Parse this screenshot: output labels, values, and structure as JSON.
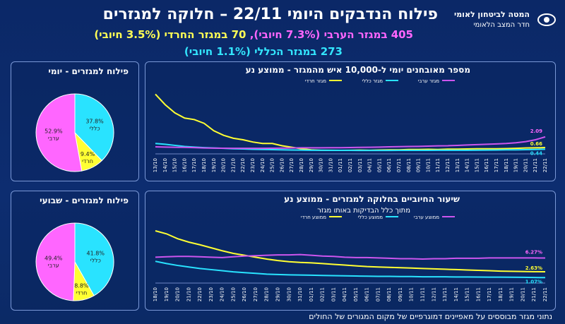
{
  "header": {
    "title": "פילוח הנדבקים היומי 22/11 – חלוקה למגזרים",
    "line1_arab": "405 במגזר הערבי (7.3% חיובי),",
    "line1_haredi": "70 במגזר החרדי (3.5% חיובי)",
    "line2": "273 במגזר הכללי (1.1% חיובי)",
    "logo_line1": "המטה לביטחון לאומי",
    "logo_line2": "חדר המצב הלאומי"
  },
  "colors": {
    "general": "#29e3ff",
    "haredi": "#ffff33",
    "arab": "#ff66ff",
    "arab_line": "#cc55ee"
  },
  "footer": "נתוני מגזר מבוססים על מאפיינים דמוגרפיים של מקום המגורים של החולים",
  "chart_data": [
    {
      "type": "pie",
      "title": "פילוח למגזרים - יומי",
      "slices": [
        {
          "name": "כללי",
          "value": 37.8,
          "label": "37.8%"
        },
        {
          "name": "חרדי",
          "value": 9.4,
          "label": "9.4%"
        },
        {
          "name": "ערבי",
          "value": 52.9,
          "label": "52.9%"
        }
      ]
    },
    {
      "type": "line",
      "title": "מספר מאובחנים יומי ל-10,000 איש מהמגזר - ממוצע נע",
      "x": [
        "13/10",
        "14/10",
        "15/10",
        "16/10",
        "17/10",
        "18/10",
        "19/10",
        "20/10",
        "21/10",
        "22/10",
        "23/10",
        "24/10",
        "25/10",
        "26/10",
        "27/10",
        "28/10",
        "29/10",
        "30/10",
        "31/10",
        "01/11",
        "02/11",
        "03/11",
        "04/11",
        "05/11",
        "06/11",
        "07/11",
        "08/11",
        "09/11",
        "10/11",
        "11/11",
        "12/11",
        "13/11",
        "14/11",
        "15/11",
        "16/11",
        "17/11",
        "18/11",
        "19/11",
        "20/11",
        "21/11",
        "22/11"
      ],
      "series": [
        {
          "name": "מגזר חרדי",
          "color": "#ffff33",
          "values": [
            7.8,
            6.4,
            5.3,
            4.6,
            4.4,
            3.9,
            2.9,
            2.3,
            1.9,
            1.7,
            1.4,
            1.2,
            1.2,
            0.9,
            0.7,
            0.5,
            0.35,
            0.3,
            0.3,
            0.28,
            0.3,
            0.32,
            0.3,
            0.33,
            0.35,
            0.35,
            0.4,
            0.4,
            0.42,
            0.4,
            0.45,
            0.45,
            0.47,
            0.5,
            0.5,
            0.5,
            0.52,
            0.55,
            0.6,
            0.62,
            0.66
          ]
        },
        {
          "name": "מגזר כללי",
          "color": "#29e3ff",
          "values": [
            1.2,
            1.1,
            0.95,
            0.8,
            0.72,
            0.65,
            0.6,
            0.55,
            0.5,
            0.47,
            0.42,
            0.4,
            0.38,
            0.35,
            0.33,
            0.32,
            0.3,
            0.3,
            0.28,
            0.28,
            0.28,
            0.27,
            0.27,
            0.27,
            0.27,
            0.28,
            0.28,
            0.28,
            0.28,
            0.29,
            0.29,
            0.3,
            0.3,
            0.31,
            0.32,
            0.33,
            0.35,
            0.36,
            0.38,
            0.4,
            0.44
          ]
        },
        {
          "name": "מגזר ערבי",
          "color": "#cc55ee",
          "values": [
            0.75,
            0.72,
            0.7,
            0.68,
            0.65,
            0.6,
            0.58,
            0.57,
            0.55,
            0.55,
            0.55,
            0.56,
            0.57,
            0.58,
            0.6,
            0.62,
            0.63,
            0.63,
            0.64,
            0.64,
            0.66,
            0.68,
            0.7,
            0.72,
            0.75,
            0.78,
            0.8,
            0.82,
            0.85,
            0.88,
            0.9,
            0.95,
            1.0,
            1.05,
            1.1,
            1.15,
            1.2,
            1.3,
            1.45,
            1.7,
            2.09
          ]
        }
      ],
      "end_labels": [
        "2.09",
        "0.66",
        "0.44"
      ],
      "ylim": [
        0,
        8.5
      ]
    },
    {
      "type": "pie",
      "title": "פילוח למגזרים - שבועי",
      "slices": [
        {
          "name": "כללי",
          "value": 41.8,
          "label": "41.8%"
        },
        {
          "name": "חרדי",
          "value": 8.8,
          "label": "8.8%"
        },
        {
          "name": "ערבי",
          "value": 49.4,
          "label": "49.4%"
        }
      ]
    },
    {
      "type": "line",
      "title": "שיעור החיוביים בחלוקה למגזרים - ממוצע נע",
      "subtitle": "מתוך כלל הבדיקות באותו מגזר",
      "x": [
        "18/10",
        "19/10",
        "20/10",
        "21/10",
        "22/10",
        "23/10",
        "24/10",
        "25/10",
        "26/10",
        "27/10",
        "28/10",
        "29/10",
        "30/10",
        "31/10",
        "01/11",
        "02/11",
        "03/11",
        "04/11",
        "05/11",
        "06/11",
        "07/11",
        "08/11",
        "09/11",
        "10/11",
        "11/11",
        "12/11",
        "13/11",
        "14/11",
        "15/11",
        "16/11",
        "17/11",
        "18/11",
        "19/11",
        "20/11",
        "21/11",
        "22/11"
      ],
      "series": [
        {
          "name": "ממוצע חרדי",
          "color": "#ffff33",
          "values": [
            13.5,
            12.7,
            11.4,
            10.5,
            9.8,
            9.0,
            8.2,
            7.5,
            7.0,
            6.5,
            6.0,
            5.6,
            5.3,
            5.1,
            5.0,
            4.8,
            4.6,
            4.4,
            4.2,
            4.0,
            3.9,
            3.8,
            3.7,
            3.6,
            3.5,
            3.4,
            3.3,
            3.2,
            3.1,
            3.0,
            2.9,
            2.8,
            2.75,
            2.7,
            2.65,
            2.63
          ]
        },
        {
          "name": "ממוצע כללי",
          "color": "#29e3ff",
          "values": [
            5.4,
            4.8,
            4.3,
            3.9,
            3.5,
            3.2,
            2.9,
            2.6,
            2.4,
            2.2,
            2.0,
            1.9,
            1.8,
            1.75,
            1.7,
            1.65,
            1.6,
            1.55,
            1.5,
            1.45,
            1.4,
            1.4,
            1.35,
            1.35,
            1.3,
            1.3,
            1.28,
            1.25,
            1.25,
            1.22,
            1.2,
            1.2,
            1.18,
            1.15,
            1.1,
            1.07
          ]
        },
        {
          "name": "ממוצע ערבי",
          "color": "#cc55ee",
          "values": [
            6.5,
            6.6,
            6.7,
            6.7,
            6.6,
            6.5,
            6.4,
            6.6,
            6.8,
            6.9,
            7.0,
            7.1,
            7.1,
            7.2,
            7.0,
            6.8,
            6.7,
            6.5,
            6.4,
            6.4,
            6.3,
            6.2,
            6.1,
            6.1,
            6.0,
            6.1,
            6.1,
            6.2,
            6.2,
            6.2,
            6.3,
            6.3,
            6.3,
            6.3,
            6.3,
            6.27
          ]
        }
      ],
      "end_labels": [
        "6.27%",
        "2.63%",
        "1.07%"
      ],
      "ylim": [
        0,
        15
      ]
    }
  ]
}
